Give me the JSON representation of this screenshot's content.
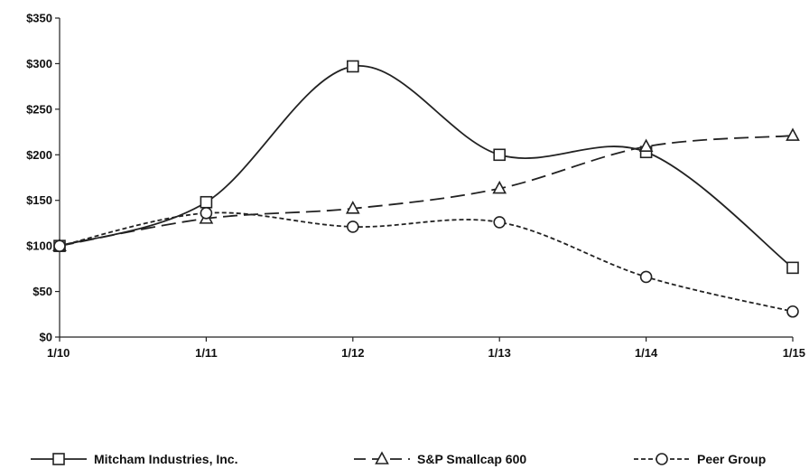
{
  "chart_data": {
    "type": "line",
    "title": "",
    "xlabel": "",
    "ylabel": "",
    "categories": [
      "1/10",
      "1/11",
      "1/12",
      "1/13",
      "1/14",
      "1/15"
    ],
    "ylim": [
      0,
      350
    ],
    "yticks": [
      0,
      50,
      100,
      150,
      200,
      250,
      300,
      350
    ],
    "ytick_labels": [
      "$0",
      "$50",
      "$100",
      "$150",
      "$200",
      "$250",
      "$300",
      "$350"
    ],
    "grid": false,
    "legend_position": "bottom",
    "series": [
      {
        "name": "Mitcham Industries, Inc.",
        "marker": "square",
        "dash": "solid",
        "color": "#222222",
        "values": [
          100,
          148,
          297,
          200,
          203,
          76
        ]
      },
      {
        "name": "S&P Smallcap 600",
        "marker": "triangle",
        "dash": "long-dash",
        "color": "#222222",
        "values": [
          100,
          130,
          141,
          163,
          209,
          221
        ]
      },
      {
        "name": "Peer Group",
        "marker": "circle",
        "dash": "short-dash",
        "color": "#222222",
        "values": [
          100,
          136,
          121,
          126,
          66,
          28
        ]
      }
    ]
  }
}
